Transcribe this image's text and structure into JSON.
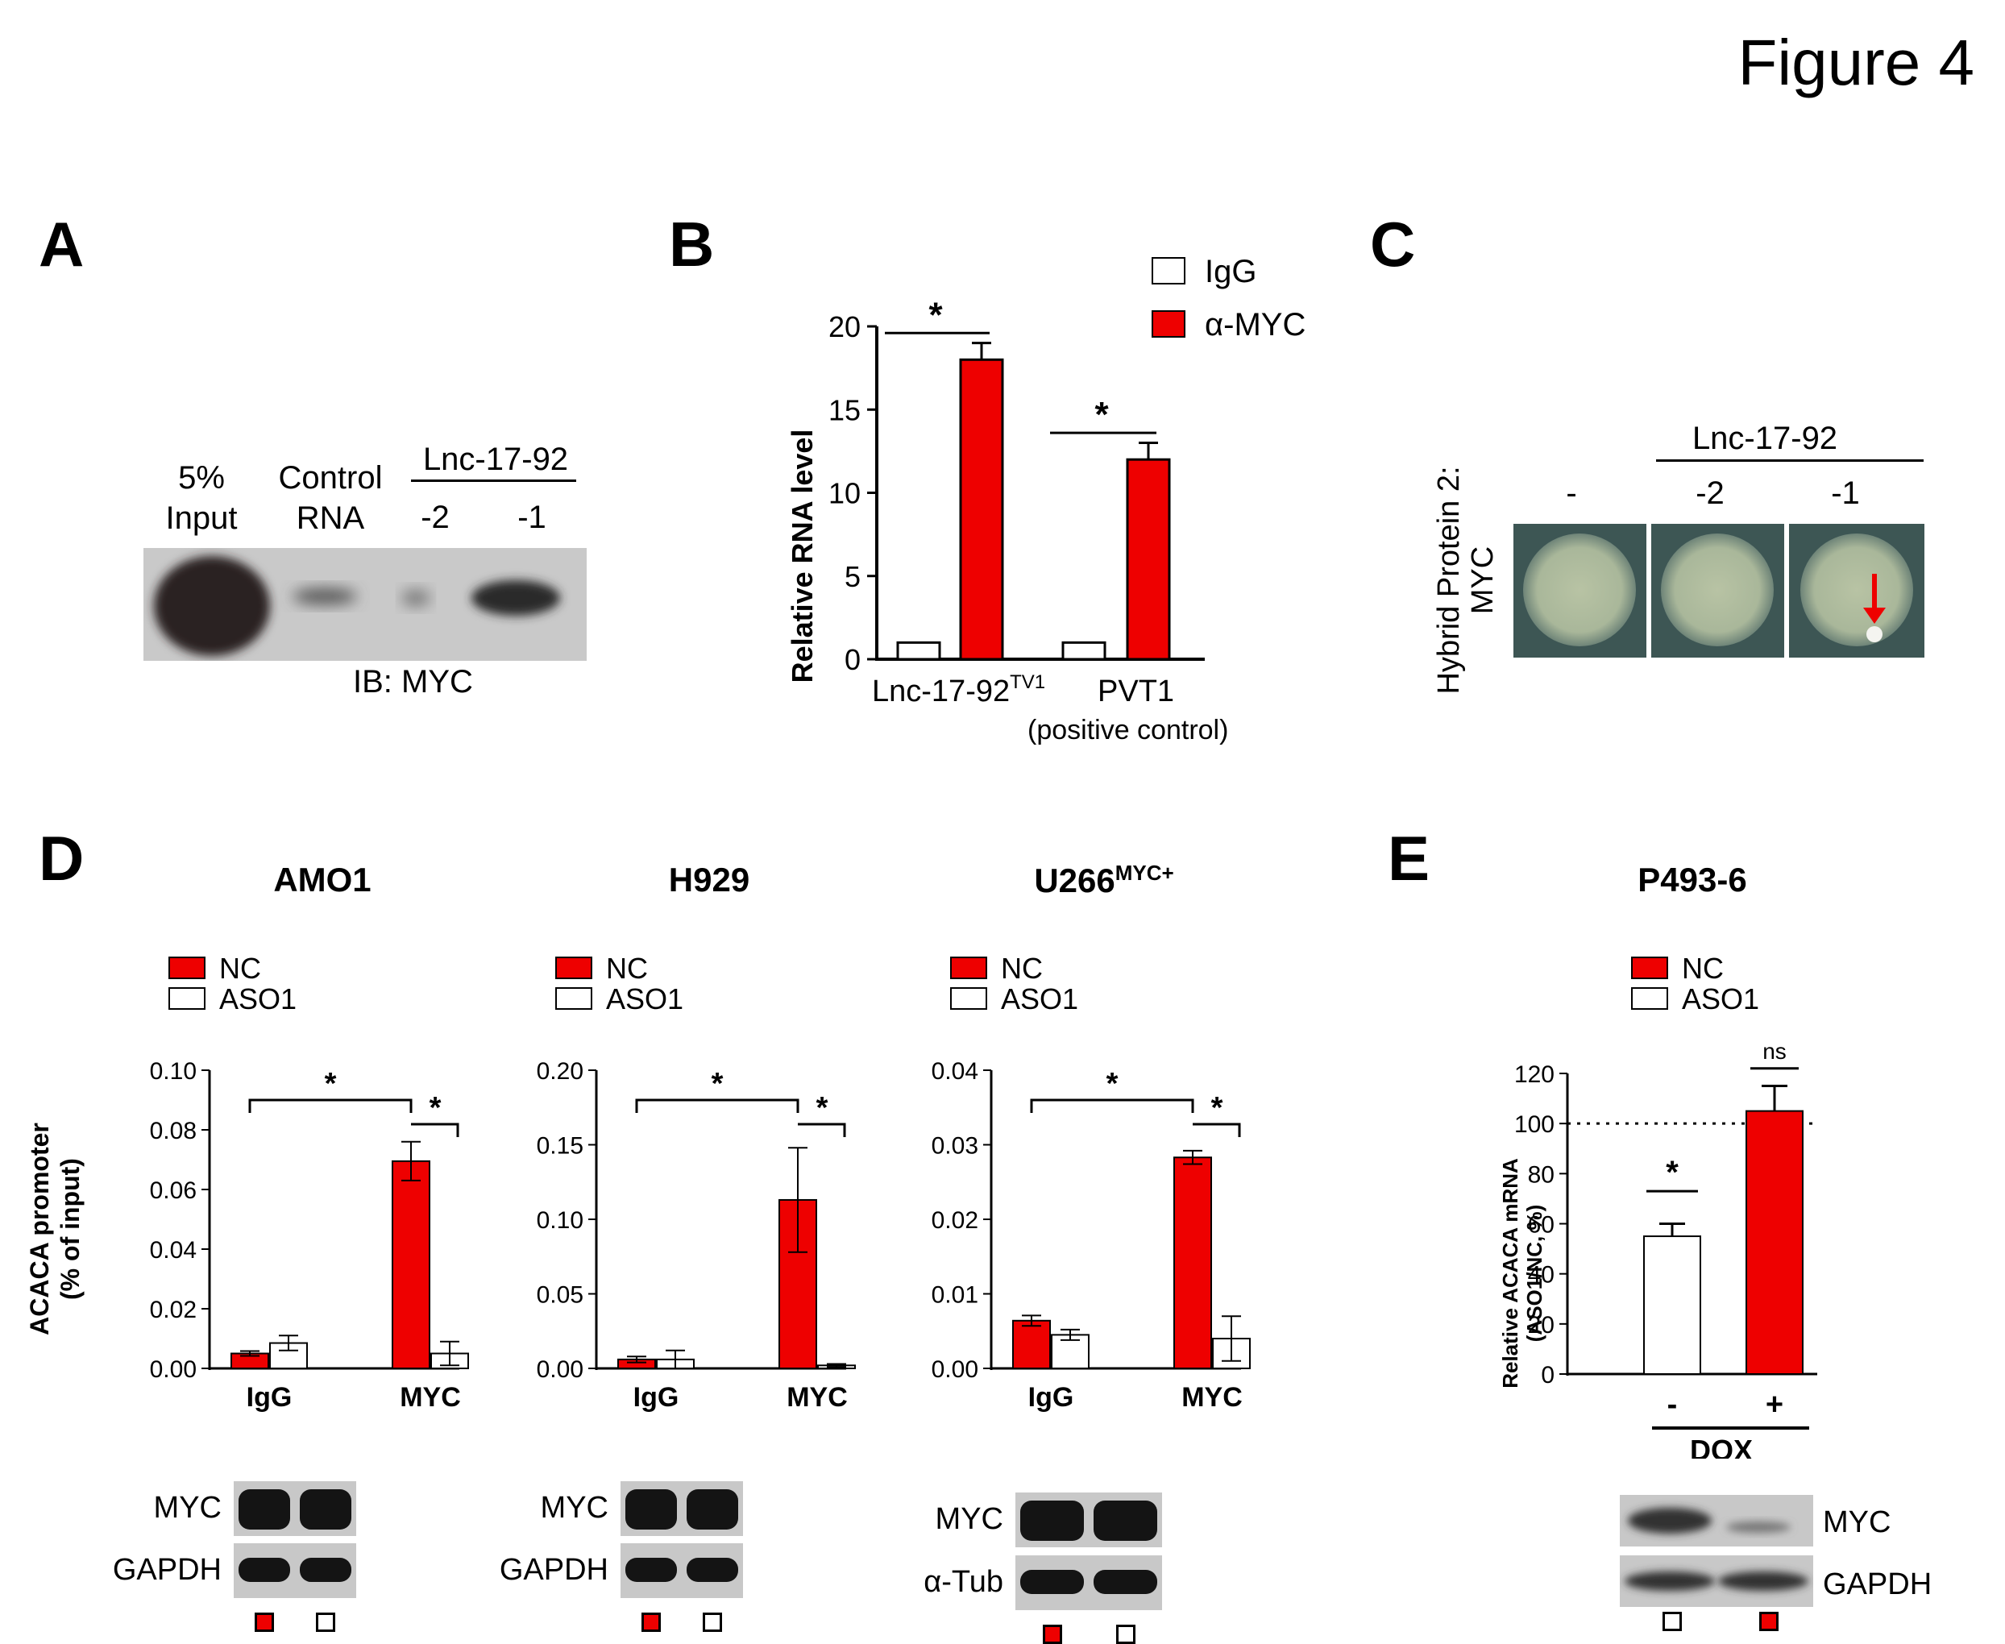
{
  "figure_title": "Figure 4",
  "panels": {
    "A": {
      "letter": "A",
      "lane_labels": [
        [
          "5%",
          "Input"
        ],
        [
          "Control",
          "RNA"
        ],
        [
          "-2"
        ],
        [
          "-1"
        ]
      ],
      "group_label": "Lnc-17-92",
      "caption": "IB: MYC"
    },
    "B": {
      "letter": "B",
      "ylabel": "Relative RNA level",
      "legend": [
        "IgG",
        "α-MYC"
      ],
      "yticks": [
        "0",
        "5",
        "10",
        "15",
        "20"
      ],
      "categories": [
        "Lnc-17-92",
        "PVT1"
      ],
      "cat_sup": "TV1",
      "cat_sub": "(positive control)",
      "sig": "*"
    },
    "C": {
      "letter": "C",
      "ylabel_line1": "Hybrid Protein 2:",
      "ylabel_line2": "MYC",
      "group_label": "Lnc-17-92",
      "lane_labels": [
        "-",
        "-2",
        "-1"
      ]
    },
    "D": {
      "letter": "D",
      "ylabel_line1": "ACACA promoter",
      "ylabel_line2": "(% of input)",
      "legend": [
        "NC",
        "ASO1"
      ],
      "xcats": [
        "IgG",
        "MYC"
      ],
      "sig": "*",
      "subpanels": [
        {
          "title": "AMO1",
          "title_sup": "",
          "yticks": [
            "0.00",
            "0.02",
            "0.04",
            "0.06",
            "0.08",
            "0.10"
          ],
          "blot_labels": [
            "MYC",
            "GAPDH"
          ]
        },
        {
          "title": "H929",
          "title_sup": "",
          "yticks": [
            "0.00",
            "0.05",
            "0.10",
            "0.15",
            "0.20"
          ],
          "blot_labels": [
            "MYC",
            "GAPDH"
          ]
        },
        {
          "title": "U266",
          "title_sup": "MYC+",
          "yticks": [
            "0.00",
            "0.01",
            "0.02",
            "0.03",
            "0.04"
          ],
          "blot_labels": [
            "MYC",
            "α-Tub"
          ]
        }
      ]
    },
    "E": {
      "letter": "E",
      "title": "P493-6",
      "ylabel_line1": "Relative ACACA mRNA",
      "ylabel_line2": "(ASO1/NC, %)",
      "legend": [
        "NC",
        "ASO1"
      ],
      "yticks": [
        "0",
        "20",
        "40",
        "60",
        "80",
        "100",
        "120"
      ],
      "xcats": [
        "-",
        "+"
      ],
      "xlabel": "DOX",
      "sig": [
        "*",
        "ns"
      ],
      "blot_labels": [
        "MYC",
        "GAPDH"
      ]
    }
  },
  "colors": {
    "red": "#ee0000",
    "dark": "#111111"
  },
  "chart_data": [
    {
      "type": "bar",
      "panel": "B",
      "categories": [
        "Lnc-17-92TV1",
        "PVT1"
      ],
      "series": [
        {
          "name": "IgG",
          "values": [
            1,
            1
          ],
          "color": "#ffffff"
        },
        {
          "name": "α-MYC",
          "values": [
            18,
            12
          ],
          "errors": [
            1.0,
            1.0
          ],
          "color": "#ee0000"
        }
      ],
      "ylabel": "Relative RNA level",
      "ylim": [
        0,
        20
      ]
    },
    {
      "type": "bar",
      "panel": "D-AMO1",
      "title": "AMO1",
      "categories": [
        "IgG",
        "MYC"
      ],
      "series": [
        {
          "name": "NC",
          "values": [
            0.005,
            0.0695
          ],
          "errors": [
            0.0008,
            0.0065
          ],
          "color": "#ee0000"
        },
        {
          "name": "ASO1",
          "values": [
            0.0085,
            0.005
          ],
          "errors": [
            0.0025,
            0.004
          ],
          "color": "#ffffff"
        }
      ],
      "ylabel": "ACACA promoter (% of input)",
      "ylim": [
        0,
        0.1
      ]
    },
    {
      "type": "bar",
      "panel": "D-H929",
      "title": "H929",
      "categories": [
        "IgG",
        "MYC"
      ],
      "series": [
        {
          "name": "NC",
          "values": [
            0.006,
            0.113
          ],
          "errors": [
            0.002,
            0.035
          ],
          "color": "#ee0000"
        },
        {
          "name": "ASO1",
          "values": [
            0.006,
            0.002
          ],
          "errors": [
            0.006,
            0.001
          ],
          "color": "#ffffff"
        }
      ],
      "ylim": [
        0,
        0.2
      ]
    },
    {
      "type": "bar",
      "panel": "D-U266",
      "title": "U266MYC+",
      "categories": [
        "IgG",
        "MYC"
      ],
      "series": [
        {
          "name": "NC",
          "values": [
            0.0064,
            0.0283
          ],
          "errors": [
            0.0007,
            0.0009
          ],
          "color": "#ee0000"
        },
        {
          "name": "ASO1",
          "values": [
            0.0045,
            0.004
          ],
          "errors": [
            0.0007,
            0.003
          ],
          "color": "#ffffff"
        }
      ],
      "ylim": [
        0,
        0.04
      ]
    },
    {
      "type": "bar",
      "panel": "E",
      "title": "P493-6",
      "categories": [
        "-",
        "+"
      ],
      "xlabel": "DOX",
      "series": [
        {
          "name": "ASO1/NC",
          "values": [
            55,
            105
          ],
          "errors": [
            5,
            10
          ],
          "colors": [
            "#ffffff",
            "#ee0000"
          ]
        }
      ],
      "reference_line": 100,
      "ylabel": "Relative ACACA mRNA (ASO1/NC, %)",
      "ylim": [
        0,
        120
      ]
    }
  ]
}
